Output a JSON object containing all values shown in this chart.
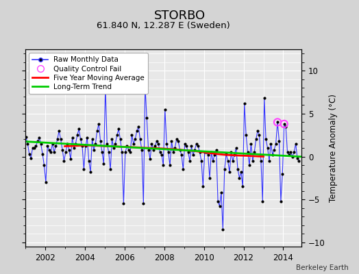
{
  "title": "STORBO",
  "subtitle": "61.840 N, 12.287 E (Sweden)",
  "ylabel": "Temperature Anomaly (°C)",
  "attribution": "Berkeley Earth",
  "ylim": [
    -10.5,
    12.5
  ],
  "xlim": [
    2001.0,
    2014.92
  ],
  "yticks": [
    -10,
    -5,
    0,
    5,
    10
  ],
  "xticks": [
    2002,
    2004,
    2006,
    2008,
    2010,
    2012,
    2014
  ],
  "bg_color": "#e8e8e8",
  "grid_color": "#ffffff",
  "raw_color": "#3333ff",
  "dot_color": "#000000",
  "mavg_color": "#ff0000",
  "trend_color": "#00cc00",
  "qc_color": "#ff44ff",
  "raw_data": [
    [
      2001.042,
      2.3
    ],
    [
      2001.125,
      1.5
    ],
    [
      2001.208,
      0.3
    ],
    [
      2001.292,
      -0.2
    ],
    [
      2001.375,
      1.0
    ],
    [
      2001.458,
      1.0
    ],
    [
      2001.542,
      1.2
    ],
    [
      2001.625,
      1.8
    ],
    [
      2001.708,
      2.2
    ],
    [
      2001.792,
      1.5
    ],
    [
      2001.875,
      0.3
    ],
    [
      2001.958,
      -1.0
    ],
    [
      2002.042,
      -3.0
    ],
    [
      2002.125,
      1.2
    ],
    [
      2002.208,
      0.8
    ],
    [
      2002.292,
      0.5
    ],
    [
      2002.375,
      1.5
    ],
    [
      2002.458,
      0.5
    ],
    [
      2002.542,
      1.2
    ],
    [
      2002.625,
      2.0
    ],
    [
      2002.708,
      3.0
    ],
    [
      2002.792,
      2.0
    ],
    [
      2002.875,
      0.8
    ],
    [
      2002.958,
      -0.5
    ],
    [
      2003.042,
      0.5
    ],
    [
      2003.125,
      1.5
    ],
    [
      2003.208,
      0.8
    ],
    [
      2003.292,
      -0.3
    ],
    [
      2003.375,
      2.2
    ],
    [
      2003.458,
      1.0
    ],
    [
      2003.542,
      1.5
    ],
    [
      2003.625,
      2.5
    ],
    [
      2003.708,
      3.2
    ],
    [
      2003.792,
      2.0
    ],
    [
      2003.875,
      1.2
    ],
    [
      2003.958,
      -1.5
    ],
    [
      2004.042,
      1.2
    ],
    [
      2004.125,
      2.2
    ],
    [
      2004.208,
      -0.5
    ],
    [
      2004.292,
      -1.8
    ],
    [
      2004.375,
      2.0
    ],
    [
      2004.458,
      0.8
    ],
    [
      2004.542,
      1.5
    ],
    [
      2004.625,
      3.0
    ],
    [
      2004.708,
      3.8
    ],
    [
      2004.792,
      1.8
    ],
    [
      2004.875,
      0.5
    ],
    [
      2004.958,
      -0.8
    ],
    [
      2005.042,
      8.2
    ],
    [
      2005.125,
      1.5
    ],
    [
      2005.208,
      0.5
    ],
    [
      2005.292,
      -1.5
    ],
    [
      2005.375,
      2.0
    ],
    [
      2005.458,
      1.0
    ],
    [
      2005.542,
      1.5
    ],
    [
      2005.625,
      2.5
    ],
    [
      2005.708,
      3.2
    ],
    [
      2005.792,
      2.0
    ],
    [
      2005.875,
      0.5
    ],
    [
      2005.958,
      -5.5
    ],
    [
      2006.042,
      0.5
    ],
    [
      2006.125,
      1.2
    ],
    [
      2006.208,
      0.8
    ],
    [
      2006.292,
      0.5
    ],
    [
      2006.375,
      2.5
    ],
    [
      2006.458,
      1.5
    ],
    [
      2006.542,
      2.0
    ],
    [
      2006.625,
      3.0
    ],
    [
      2006.708,
      3.5
    ],
    [
      2006.792,
      2.0
    ],
    [
      2006.875,
      0.8
    ],
    [
      2006.958,
      -5.5
    ],
    [
      2007.042,
      8.2
    ],
    [
      2007.125,
      4.5
    ],
    [
      2007.208,
      0.8
    ],
    [
      2007.292,
      -0.3
    ],
    [
      2007.375,
      1.5
    ],
    [
      2007.458,
      0.8
    ],
    [
      2007.542,
      1.2
    ],
    [
      2007.625,
      1.8
    ],
    [
      2007.708,
      1.5
    ],
    [
      2007.792,
      0.5
    ],
    [
      2007.875,
      0.2
    ],
    [
      2007.958,
      -1.0
    ],
    [
      2008.042,
      5.5
    ],
    [
      2008.125,
      1.5
    ],
    [
      2008.208,
      0.5
    ],
    [
      2008.292,
      -1.0
    ],
    [
      2008.375,
      1.8
    ],
    [
      2008.458,
      0.5
    ],
    [
      2008.542,
      1.0
    ],
    [
      2008.625,
      2.0
    ],
    [
      2008.708,
      1.8
    ],
    [
      2008.792,
      0.8
    ],
    [
      2008.875,
      0.2
    ],
    [
      2008.958,
      -1.5
    ],
    [
      2009.042,
      1.5
    ],
    [
      2009.125,
      1.2
    ],
    [
      2009.208,
      0.5
    ],
    [
      2009.292,
      -0.5
    ],
    [
      2009.375,
      1.2
    ],
    [
      2009.458,
      0.2
    ],
    [
      2009.542,
      0.8
    ],
    [
      2009.625,
      1.5
    ],
    [
      2009.708,
      1.2
    ],
    [
      2009.792,
      0.5
    ],
    [
      2009.875,
      -0.5
    ],
    [
      2009.958,
      -3.5
    ],
    [
      2010.042,
      0.5
    ],
    [
      2010.125,
      0.5
    ],
    [
      2010.208,
      0.2
    ],
    [
      2010.292,
      -2.5
    ],
    [
      2010.375,
      0.5
    ],
    [
      2010.458,
      -0.5
    ],
    [
      2010.542,
      0.2
    ],
    [
      2010.625,
      0.8
    ],
    [
      2010.708,
      -5.2
    ],
    [
      2010.792,
      -5.8
    ],
    [
      2010.875,
      -4.2
    ],
    [
      2010.958,
      -8.5
    ],
    [
      2011.042,
      -1.5
    ],
    [
      2011.125,
      0.3
    ],
    [
      2011.208,
      -0.5
    ],
    [
      2011.292,
      -1.8
    ],
    [
      2011.375,
      0.5
    ],
    [
      2011.458,
      -0.5
    ],
    [
      2011.542,
      0.2
    ],
    [
      2011.625,
      1.0
    ],
    [
      2011.708,
      -1.5
    ],
    [
      2011.792,
      -2.5
    ],
    [
      2011.875,
      -1.8
    ],
    [
      2011.958,
      -3.5
    ],
    [
      2012.042,
      6.2
    ],
    [
      2012.125,
      2.5
    ],
    [
      2012.208,
      0.5
    ],
    [
      2012.292,
      -1.0
    ],
    [
      2012.375,
      1.5
    ],
    [
      2012.458,
      -0.5
    ],
    [
      2012.542,
      0.5
    ],
    [
      2012.625,
      2.0
    ],
    [
      2012.708,
      3.0
    ],
    [
      2012.792,
      2.5
    ],
    [
      2012.875,
      -0.5
    ],
    [
      2012.958,
      -5.2
    ],
    [
      2013.042,
      6.8
    ],
    [
      2013.125,
      2.0
    ],
    [
      2013.208,
      1.0
    ],
    [
      2013.292,
      -0.5
    ],
    [
      2013.375,
      1.5
    ],
    [
      2013.458,
      0.2
    ],
    [
      2013.542,
      0.8
    ],
    [
      2013.625,
      1.5
    ],
    [
      2013.708,
      4.0
    ],
    [
      2013.792,
      1.8
    ],
    [
      2013.875,
      -5.2
    ],
    [
      2013.958,
      -2.0
    ],
    [
      2014.042,
      3.8
    ],
    [
      2014.125,
      3.5
    ],
    [
      2014.208,
      0.5
    ],
    [
      2014.292,
      0.2
    ],
    [
      2014.375,
      0.5
    ],
    [
      2014.458,
      0.0
    ],
    [
      2014.542,
      0.5
    ],
    [
      2014.625,
      1.5
    ],
    [
      2014.708,
      -0.2
    ],
    [
      2014.792,
      -0.5
    ]
  ],
  "mavg_data": [
    [
      2003.0,
      1.2
    ],
    [
      2003.25,
      1.22
    ],
    [
      2003.5,
      1.25
    ],
    [
      2003.75,
      1.28
    ],
    [
      2004.0,
      1.3
    ],
    [
      2004.25,
      1.3
    ],
    [
      2004.5,
      1.28
    ],
    [
      2004.75,
      1.25
    ],
    [
      2005.0,
      1.22
    ],
    [
      2005.25,
      1.2
    ],
    [
      2005.5,
      1.18
    ],
    [
      2005.75,
      1.15
    ],
    [
      2006.0,
      1.12
    ],
    [
      2006.25,
      1.1
    ],
    [
      2006.5,
      1.08
    ],
    [
      2006.75,
      1.05
    ],
    [
      2007.0,
      1.02
    ],
    [
      2007.25,
      1.0
    ],
    [
      2007.5,
      0.98
    ],
    [
      2007.75,
      0.95
    ],
    [
      2008.0,
      0.92
    ],
    [
      2008.25,
      0.88
    ],
    [
      2008.5,
      0.85
    ],
    [
      2008.75,
      0.8
    ],
    [
      2009.0,
      0.75
    ],
    [
      2009.25,
      0.7
    ],
    [
      2009.5,
      0.65
    ],
    [
      2009.75,
      0.58
    ],
    [
      2010.0,
      0.5
    ],
    [
      2010.25,
      0.42
    ],
    [
      2010.5,
      0.35
    ],
    [
      2010.75,
      0.28
    ],
    [
      2011.0,
      0.22
    ],
    [
      2011.25,
      0.18
    ],
    [
      2011.5,
      0.15
    ],
    [
      2011.75,
      0.12
    ],
    [
      2012.0,
      0.1
    ],
    [
      2012.25,
      0.08
    ],
    [
      2012.5,
      0.05
    ],
    [
      2012.75,
      0.02
    ],
    [
      2013.0,
      0.0
    ]
  ],
  "trend_data": [
    [
      2001.0,
      1.75
    ],
    [
      2014.92,
      -0.02
    ]
  ],
  "qc_fail_data": [
    [
      2013.708,
      4.0
    ],
    [
      2014.042,
      3.8
    ]
  ]
}
